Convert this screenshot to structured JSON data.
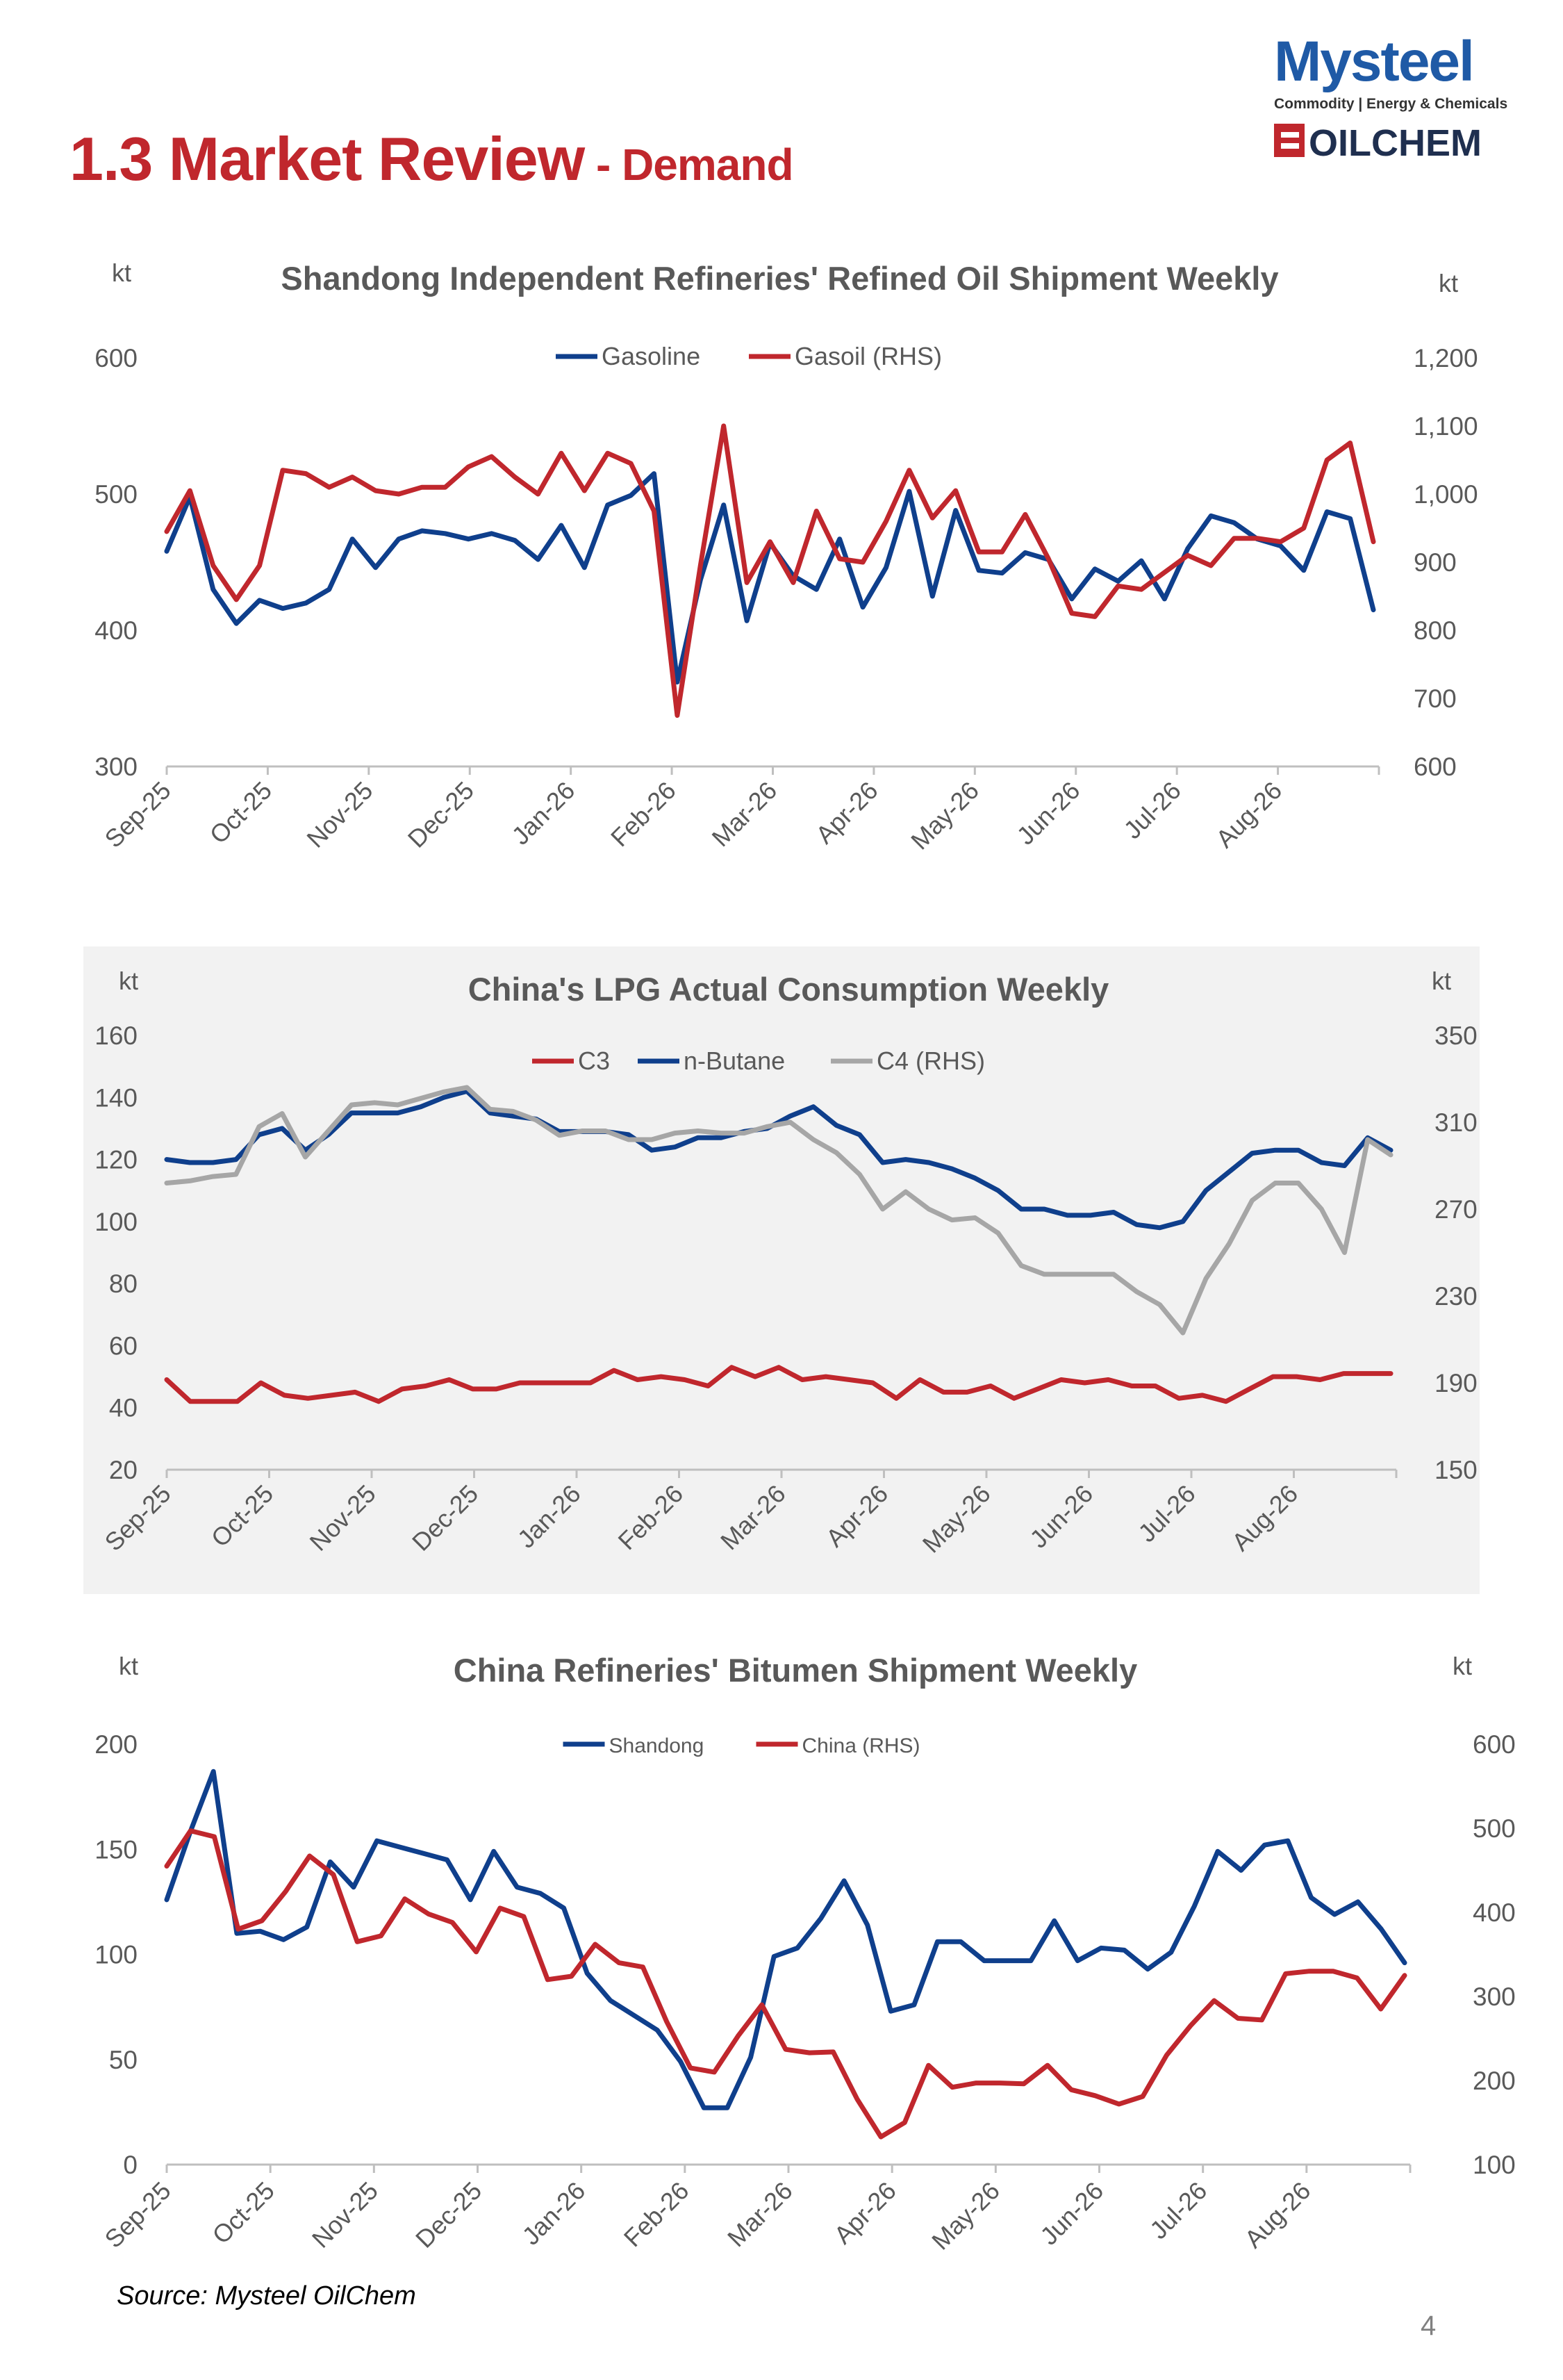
{
  "header": {
    "title_main": "1.3 Market Review",
    "title_sub": " - Demand",
    "logo_brand": "Mysteel",
    "logo_tagline": "Commodity | Energy & Chemicals",
    "logo_sub": "OILCHEM"
  },
  "footer": {
    "source": "Source: Mysteel OilChem",
    "page": "4"
  },
  "colors": {
    "red": "#c0272d",
    "blue": "#0f3f8c",
    "gray": "#a6a6a6",
    "title": "#595959"
  },
  "x_labels": [
    "Sep-25",
    "Oct-25",
    "Nov-25",
    "Dec-25",
    "Jan-26",
    "Feb-26",
    "Mar-26",
    "Apr-26",
    "May-26",
    "Jun-26",
    "Jul-26",
    "Aug-26"
  ],
  "chart_data": [
    {
      "type": "line",
      "title": "Shandong Independent Refineries' Refined Oil Shipment Weekly",
      "ylabel_left": "kt",
      "ylabel_right": "kt",
      "ylim_left": [
        300,
        600
      ],
      "yticks_left": [
        "300",
        "400",
        "500",
        "600"
      ],
      "ylim_right": [
        600,
        1200
      ],
      "yticks_right": [
        "600",
        "700",
        "800",
        "900",
        "1,000",
        "1,100",
        "1,200"
      ],
      "legend_placement": "top-center",
      "series": [
        {
          "name": "Gasoline",
          "axis": "left",
          "color": "#0f3f8c",
          "values": [
            458,
            498,
            430,
            405,
            422,
            416,
            420,
            430,
            467,
            446,
            467,
            473,
            471,
            467,
            471,
            466,
            452,
            477,
            446,
            492,
            499,
            515,
            362,
            437,
            492,
            407,
            464,
            440,
            430,
            467,
            417,
            446,
            502,
            425,
            488,
            444,
            442,
            457,
            452,
            423,
            445,
            436,
            451,
            423,
            460,
            484,
            479,
            467,
            462,
            444,
            487,
            482,
            415
          ]
        },
        {
          "name": "Gasoil (RHS)",
          "axis": "right",
          "color": "#c0272d",
          "values": [
            945,
            1005,
            895,
            845,
            895,
            1035,
            1030,
            1010,
            1025,
            1005,
            1000,
            1010,
            1010,
            1040,
            1055,
            1025,
            1000,
            1060,
            1005,
            1060,
            1045,
            975,
            675,
            895,
            1100,
            870,
            930,
            870,
            975,
            905,
            900,
            960,
            1035,
            965,
            1005,
            915,
            915,
            970,
            905,
            825,
            820,
            865,
            860,
            885,
            910,
            895,
            935,
            935,
            930,
            950,
            1050,
            1075,
            930
          ]
        }
      ]
    },
    {
      "type": "line",
      "title": "China's LPG Actual Consumption Weekly",
      "ylabel_left": "kt",
      "ylabel_right": "kt",
      "ylim_left": [
        20,
        160
      ],
      "yticks_left": [
        "20",
        "40",
        "60",
        "80",
        "100",
        "120",
        "140",
        "160"
      ],
      "ylim_right": [
        150,
        350
      ],
      "yticks_right": [
        "150",
        "190",
        "230",
        "270",
        "310",
        "350"
      ],
      "grid": false,
      "background": "#f2f2f2",
      "legend_placement": "top-center",
      "series": [
        {
          "name": "C3",
          "axis": "left",
          "color": "#c0272d",
          "values": [
            49,
            42,
            42,
            42,
            48,
            44,
            43,
            44,
            45,
            42,
            46,
            47,
            49,
            46,
            46,
            48,
            48,
            48,
            48,
            52,
            49,
            50,
            49,
            47,
            53,
            50,
            53,
            49,
            50,
            49,
            48,
            43,
            49,
            45,
            45,
            47,
            43,
            46,
            49,
            48,
            49,
            47,
            47,
            43,
            44,
            42,
            46,
            50,
            50,
            49,
            51,
            51,
            51
          ]
        },
        {
          "name": "n-Butane",
          "axis": "left",
          "color": "#0f3f8c",
          "values": [
            120,
            119,
            119,
            120,
            128,
            130,
            123,
            128,
            135,
            135,
            135,
            137,
            140,
            142,
            135,
            134,
            133,
            129,
            129,
            129,
            128,
            123,
            124,
            127,
            127,
            129,
            130,
            134,
            137,
            131,
            128,
            119,
            120,
            119,
            117,
            114,
            110,
            104,
            104,
            102,
            102,
            103,
            99,
            98,
            100,
            110,
            116,
            122,
            123,
            123,
            119,
            118,
            127,
            123
          ]
        },
        {
          "name": "C4 (RHS)",
          "axis": "right",
          "color": "#a6a6a6",
          "values": [
            282,
            283,
            285,
            286,
            308,
            314,
            294,
            306,
            318,
            319,
            318,
            321,
            324,
            326,
            316,
            315,
            311,
            304,
            306,
            306,
            302,
            302,
            305,
            306,
            305,
            305,
            308,
            310,
            302,
            296,
            286,
            270,
            278,
            270,
            265,
            266,
            259,
            244,
            240,
            240,
            240,
            240,
            232,
            226,
            213,
            238,
            254,
            274,
            282,
            282,
            270,
            250,
            302,
            295
          ]
        }
      ]
    },
    {
      "type": "line",
      "title": "China Refineries' Bitumen Shipment Weekly",
      "ylabel_left": "kt",
      "ylabel_right": "kt",
      "ylim_left": [
        0,
        200
      ],
      "yticks_left": [
        "0",
        "50",
        "100",
        "150",
        "200"
      ],
      "ylim_right": [
        100,
        600
      ],
      "yticks_right": [
        "100",
        "200",
        "300",
        "400",
        "500",
        "600"
      ],
      "legend_placement": "top-center",
      "series": [
        {
          "name": "Shandong",
          "axis": "left",
          "color": "#0f3f8c",
          "values": [
            126,
            158,
            187,
            110,
            111,
            107,
            113,
            144,
            132,
            154,
            151,
            148,
            145,
            126,
            149,
            132,
            129,
            122,
            91,
            78,
            71,
            64,
            49,
            27,
            27,
            51,
            99,
            103,
            117,
            135,
            114,
            73,
            76,
            106,
            106,
            97,
            97,
            97,
            116,
            97,
            103,
            102,
            93,
            101,
            123,
            149,
            140,
            152,
            154,
            127,
            119,
            125,
            112,
            96
          ]
        },
        {
          "name": "China (RHS)",
          "axis": "right",
          "color": "#c0272d",
          "values": [
            455,
            497,
            490,
            380,
            390,
            425,
            467,
            445,
            365,
            372,
            416,
            398,
            388,
            353,
            405,
            395,
            320,
            324,
            362,
            340,
            335,
            270,
            215,
            210,
            253,
            290,
            237,
            233,
            234,
            178,
            133,
            150,
            218,
            192,
            197,
            197,
            196,
            218,
            189,
            182,
            172,
            181,
            230,
            265,
            295,
            274,
            272,
            327,
            330,
            330,
            322,
            285,
            325
          ]
        }
      ]
    }
  ]
}
